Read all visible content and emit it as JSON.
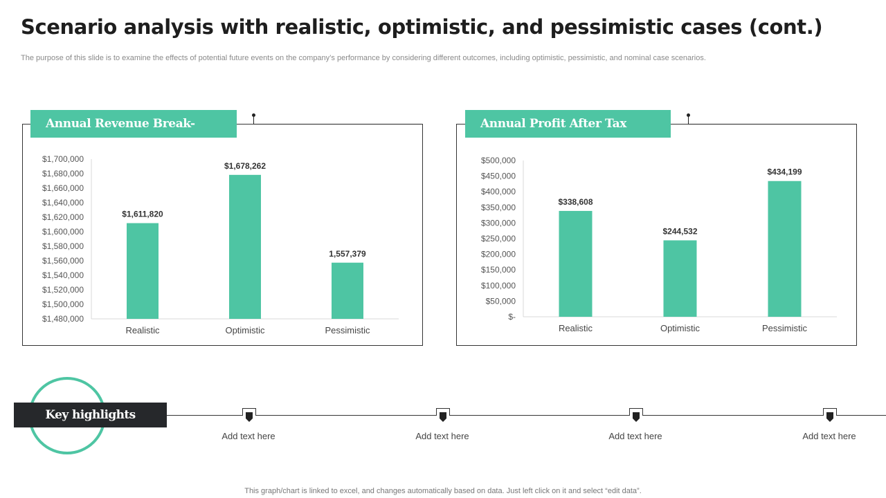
{
  "title": "Scenario analysis with realistic, optimistic, and pessimistic cases (cont.)",
  "subtitle": "The purpose of this slide is to examine the effects of potential future events on the company’s performance by considering different outcomes, including optimistic, pessimistic, and nominal case scenarios.",
  "accent_color": "#4ec5a3",
  "chart_data": [
    {
      "type": "bar",
      "title": "Annual Revenue Break-even",
      "categories": [
        "Realistic",
        "Optimistic",
        "Pessimistic"
      ],
      "values": [
        1611820,
        1678262,
        1557379
      ],
      "data_labels": [
        "$1,611,820",
        "$1,678,262",
        "1,557,379"
      ],
      "ylim": [
        1480000,
        1700000
      ],
      "yticks": [
        1480000,
        1500000,
        1520000,
        1540000,
        1560000,
        1580000,
        1600000,
        1620000,
        1640000,
        1660000,
        1680000,
        1700000
      ],
      "ytick_labels": [
        "$1,480,000",
        "$1,500,000",
        "$1,520,000",
        "$1,540,000",
        "$1,560,000",
        "$1,580,000",
        "$1,600,000",
        "$1,620,000",
        "$1,640,000",
        "$1,660,000",
        "$1,680,000",
        "$1,700,000"
      ],
      "xlabel": "",
      "ylabel": "",
      "grid": false
    },
    {
      "type": "bar",
      "title": "Annual Profit After Tax",
      "categories": [
        "Realistic",
        "Optimistic",
        "Pessimistic"
      ],
      "values": [
        338608,
        244532,
        434199
      ],
      "data_labels": [
        "$338,608",
        "$244,532",
        "$434,199"
      ],
      "ylim": [
        0,
        500000
      ],
      "yticks": [
        0,
        50000,
        100000,
        150000,
        200000,
        250000,
        300000,
        350000,
        400000,
        450000,
        500000
      ],
      "ytick_labels": [
        "$-",
        "$50,000",
        "$100,000",
        "$150,000",
        "$200,000",
        "$250,000",
        "$300,000",
        "$350,000",
        "$400,000",
        "$450,000",
        "$500,000"
      ],
      "xlabel": "",
      "ylabel": "",
      "grid": false
    }
  ],
  "key_highlights": {
    "label": "Key highlights",
    "items": [
      "Add text here",
      "Add text here",
      "Add text here",
      "Add text here"
    ]
  },
  "footnote": "This graph/chart is linked to excel,  and changes automatically based on data. Just left click on it and select “edit data”."
}
